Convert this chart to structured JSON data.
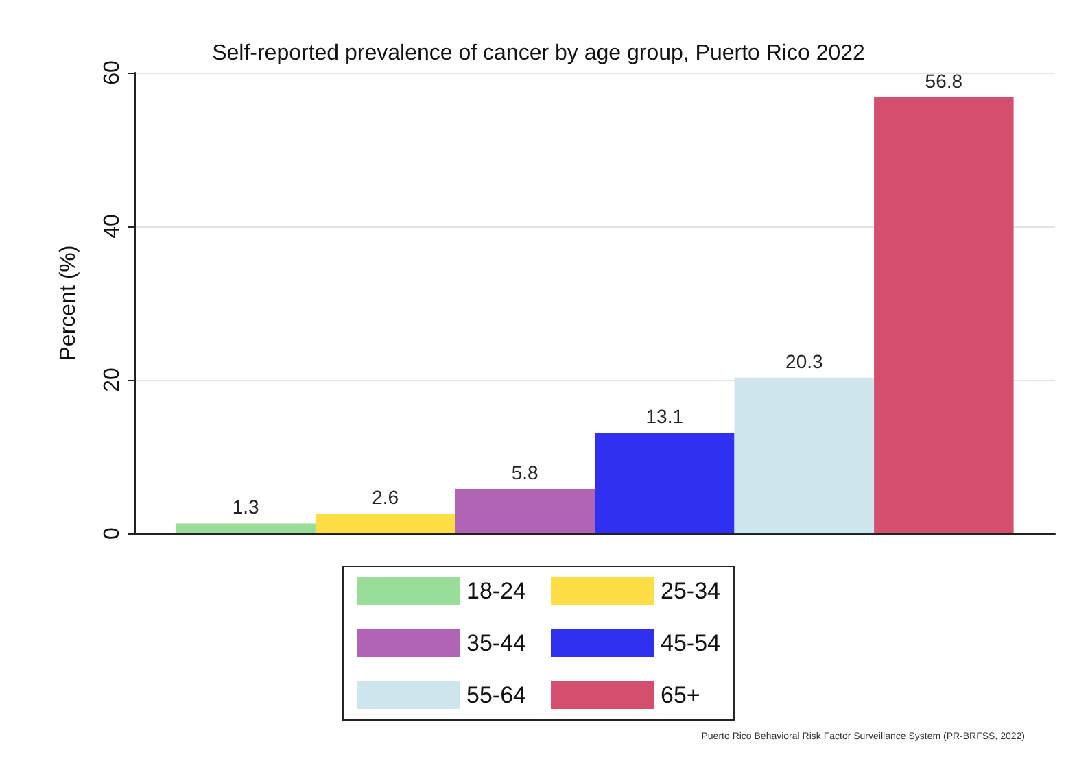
{
  "chart_data": {
    "type": "bar",
    "title": "Self-reported prevalence of cancer by age group, Puerto Rico 2022",
    "ylabel": "Percent (%)",
    "categories": [
      null
    ],
    "series": [
      {
        "name": "18-24",
        "color": "#98dd98",
        "values": [
          1.3
        ]
      },
      {
        "name": "25-34",
        "color": "#ffdd44",
        "values": [
          2.6
        ]
      },
      {
        "name": "35-44",
        "color": "#b064b4",
        "values": [
          5.8
        ]
      },
      {
        "name": "45-54",
        "color": "#3030f0",
        "values": [
          13.1
        ]
      },
      {
        "name": "55-64",
        "color": "#cde6ee",
        "values": [
          20.3
        ]
      },
      {
        "name": "65+",
        "color": "#d44f6e",
        "values": [
          56.8
        ]
      }
    ],
    "ylim": [
      0,
      60
    ],
    "yticks": [
      0,
      20,
      40,
      60
    ],
    "grid": "y",
    "legend": "bottom",
    "data_labels": true,
    "annotations": [
      "Puerto Rico Behavioral Risk Factor Surveillance System (PR-BRFSS, 2022)"
    ]
  }
}
